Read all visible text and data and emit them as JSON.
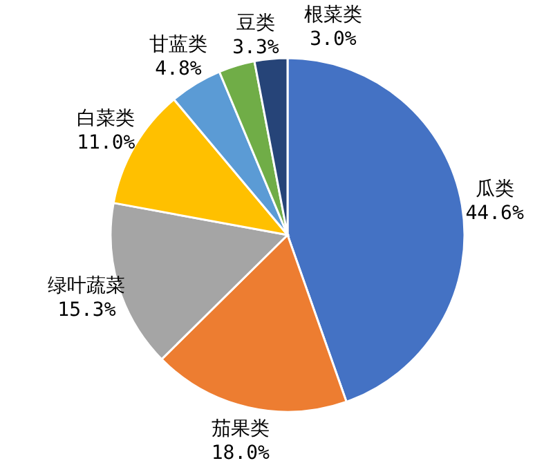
{
  "chart_data": {
    "type": "pie",
    "categories": [
      "瓜类",
      "茄果类",
      "绿叶蔬菜",
      "白菜类",
      "甘蓝类",
      "豆类",
      "根菜类"
    ],
    "values": [
      44.6,
      18.0,
      15.3,
      11.0,
      4.8,
      3.3,
      3.0
    ],
    "colors": [
      "#4472c4",
      "#ed7d31",
      "#a5a5a5",
      "#ffc000",
      "#5b9bd5",
      "#70ad47",
      "#264478"
    ],
    "value_labels": [
      "44.6%",
      "18.0%",
      "15.3%",
      "11.0%",
      "4.8%",
      "3.3%",
      "3.0%"
    ]
  }
}
